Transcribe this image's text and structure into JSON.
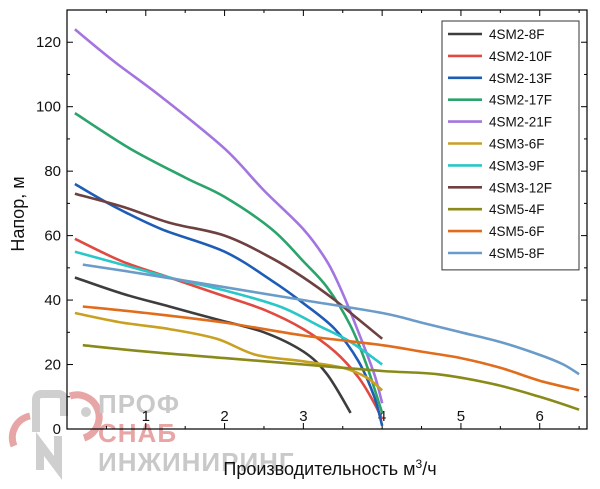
{
  "chart_data": {
    "type": "line",
    "xlabel": "Производительность м³/ч",
    "xlabel_main": "Производительность м",
    "xlabel_sup": "3",
    "xlabel_tail": "/ч",
    "ylabel": "Напор, м",
    "xlim": [
      0,
      6.6
    ],
    "ylim": [
      0,
      130
    ],
    "xticks": [
      1,
      2,
      3,
      4,
      5,
      6
    ],
    "yticks": [
      0,
      20,
      40,
      60,
      80,
      100,
      120
    ],
    "grid": false,
    "legend_position": "top-right",
    "series": [
      {
        "name": "4SM2-8F",
        "color": "#3d3d3d",
        "points": [
          [
            0.1,
            47
          ],
          [
            0.7,
            42
          ],
          [
            1.3,
            38
          ],
          [
            1.9,
            34
          ],
          [
            2.5,
            30
          ],
          [
            3.0,
            24
          ],
          [
            3.3,
            17
          ],
          [
            3.6,
            5
          ]
        ]
      },
      {
        "name": "4SM2-10F",
        "color": "#e04a40",
        "points": [
          [
            0.1,
            59
          ],
          [
            0.7,
            52
          ],
          [
            1.3,
            47
          ],
          [
            1.9,
            42
          ],
          [
            2.5,
            37
          ],
          [
            3.0,
            31
          ],
          [
            3.4,
            24
          ],
          [
            3.7,
            16
          ],
          [
            3.9,
            8
          ],
          [
            4.0,
            3
          ]
        ]
      },
      {
        "name": "4SM2-13F",
        "color": "#1d5db5",
        "points": [
          [
            0.1,
            76
          ],
          [
            0.6,
            69
          ],
          [
            1.2,
            62
          ],
          [
            2.0,
            55
          ],
          [
            2.6,
            46
          ],
          [
            3.0,
            39
          ],
          [
            3.4,
            31
          ],
          [
            3.7,
            21
          ],
          [
            3.9,
            10
          ],
          [
            4.0,
            1
          ]
        ]
      },
      {
        "name": "4SM2-17F",
        "color": "#2aa46a",
        "points": [
          [
            0.1,
            98
          ],
          [
            0.8,
            87
          ],
          [
            1.5,
            78
          ],
          [
            2.0,
            72
          ],
          [
            2.6,
            62
          ],
          [
            3.0,
            52
          ],
          [
            3.3,
            44
          ],
          [
            3.6,
            32
          ],
          [
            3.8,
            20
          ],
          [
            4.0,
            5
          ]
        ]
      },
      {
        "name": "4SM2-21F",
        "color": "#a474e0",
        "points": [
          [
            0.1,
            124
          ],
          [
            0.6,
            114
          ],
          [
            1.2,
            103
          ],
          [
            2.0,
            87
          ],
          [
            2.5,
            74
          ],
          [
            3.0,
            62
          ],
          [
            3.3,
            52
          ],
          [
            3.5,
            42
          ],
          [
            3.7,
            30
          ],
          [
            3.9,
            17
          ],
          [
            4.0,
            8
          ]
        ]
      },
      {
        "name": "4SM3-6F",
        "color": "#c9a020",
        "points": [
          [
            0.1,
            36
          ],
          [
            0.7,
            33
          ],
          [
            1.3,
            31
          ],
          [
            1.9,
            28
          ],
          [
            2.4,
            23
          ],
          [
            3.0,
            21
          ],
          [
            3.5,
            19
          ],
          [
            3.8,
            16
          ],
          [
            4.0,
            12
          ]
        ]
      },
      {
        "name": "4SM3-9F",
        "color": "#29c7c7",
        "points": [
          [
            0.1,
            55
          ],
          [
            0.7,
            51
          ],
          [
            1.3,
            47
          ],
          [
            2.0,
            43
          ],
          [
            2.7,
            38
          ],
          [
            3.2,
            32
          ],
          [
            3.6,
            27
          ],
          [
            4.0,
            20
          ]
        ]
      },
      {
        "name": "4SM3-12F",
        "color": "#6e4040",
        "points": [
          [
            0.1,
            73
          ],
          [
            0.7,
            69
          ],
          [
            1.3,
            64
          ],
          [
            2.0,
            60
          ],
          [
            2.6,
            53
          ],
          [
            3.0,
            47
          ],
          [
            3.4,
            40
          ],
          [
            3.7,
            34
          ],
          [
            4.0,
            28
          ]
        ]
      },
      {
        "name": "4SM5-4F",
        "color": "#8a8a1a",
        "points": [
          [
            0.2,
            26
          ],
          [
            1.0,
            24
          ],
          [
            2.0,
            22
          ],
          [
            3.0,
            20
          ],
          [
            4.0,
            18
          ],
          [
            4.7,
            17
          ],
          [
            5.4,
            14
          ],
          [
            6.0,
            10
          ],
          [
            6.5,
            6
          ]
        ]
      },
      {
        "name": "4SM5-6F",
        "color": "#e06c1c",
        "points": [
          [
            0.2,
            38
          ],
          [
            1.0,
            36
          ],
          [
            2.0,
            33
          ],
          [
            3.0,
            29
          ],
          [
            4.0,
            26
          ],
          [
            4.5,
            24
          ],
          [
            5.0,
            22
          ],
          [
            5.5,
            19
          ],
          [
            6.0,
            15
          ],
          [
            6.5,
            12
          ]
        ]
      },
      {
        "name": "4SM5-8F",
        "color": "#6b9bc8",
        "points": [
          [
            0.2,
            51
          ],
          [
            1.0,
            48
          ],
          [
            2.0,
            44
          ],
          [
            3.0,
            40
          ],
          [
            4.0,
            36
          ],
          [
            4.5,
            33
          ],
          [
            5.0,
            30
          ],
          [
            5.5,
            27
          ],
          [
            6.0,
            23
          ],
          [
            6.3,
            20
          ],
          [
            6.5,
            17
          ]
        ]
      }
    ]
  },
  "watermark": {
    "line1": "ПРОФ",
    "line2": "СНАБ",
    "line3": "ИНЖИНИРИНГ",
    "color": "#cfcfcf",
    "accent": "#e06a6a"
  }
}
